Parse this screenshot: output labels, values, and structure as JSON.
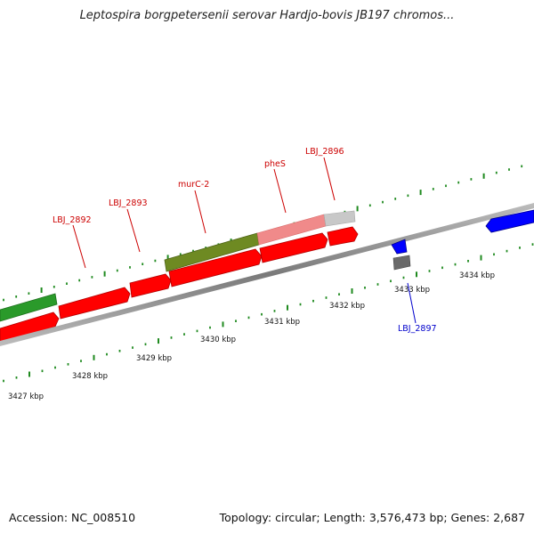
{
  "title": "Leptospira borgpetersenii serovar Hardjo-bovis JB197 chromos...",
  "footer": {
    "accession": "Accession: NC_008510",
    "summary": "Topology: circular; Length: 3,576,473 bp; Genes: 2,687"
  },
  "colors": {
    "forward_gene": "#ff0000",
    "reverse_gene": "#0000ff",
    "feature_green": "#2a9a2a",
    "feature_olive": "#6e8a22",
    "feature_pink": "#f08a8a",
    "feature_gray": "#c8c8c8",
    "feature_darkgray": "#6a6a6a",
    "backbone": "#8a8a8a",
    "tick": "#1f8a1f",
    "label_forward": "#cc0000",
    "label_reverse": "#0000cc",
    "leader_forward": "#cc0000",
    "leader_reverse": "#0000cc"
  },
  "scale": {
    "ticks": [
      {
        "label": "3427 kbp"
      },
      {
        "label": "3428 kbp"
      },
      {
        "label": "3429 kbp"
      },
      {
        "label": "3430 kbp"
      },
      {
        "label": "3431 kbp"
      },
      {
        "label": "3432 kbp"
      },
      {
        "label": "3433 kbp"
      },
      {
        "label": "3434 kbp"
      }
    ]
  },
  "gene_labels": [
    {
      "name": "LBJ_2892",
      "strand": "forward"
    },
    {
      "name": "LBJ_2893",
      "strand": "forward"
    },
    {
      "name": "murC-2",
      "strand": "forward"
    },
    {
      "name": "pheS",
      "strand": "forward"
    },
    {
      "name": "LBJ_2896",
      "strand": "forward"
    },
    {
      "name": "LBJ_2897",
      "strand": "reverse"
    }
  ]
}
